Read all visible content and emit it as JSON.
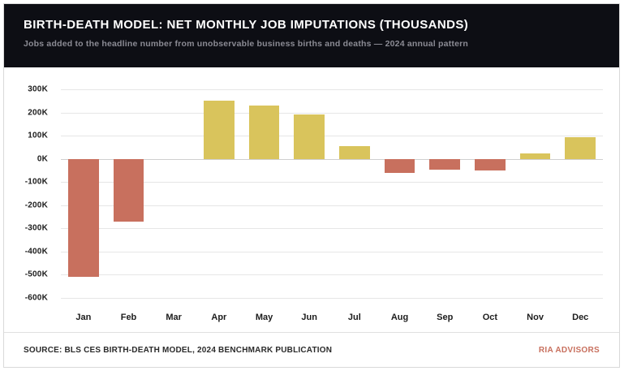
{
  "header": {
    "title": "BIRTH-DEATH MODEL: NET MONTHLY JOB IMPUTATIONS (THOUSANDS)",
    "subtitle": "Jobs added to the headline number from unobservable business births and deaths — 2024 annual pattern"
  },
  "chart_data": {
    "type": "bar",
    "categories": [
      "Jan",
      "Feb",
      "Mar",
      "Apr",
      "May",
      "Jun",
      "Jul",
      "Aug",
      "Sep",
      "Oct",
      "Nov",
      "Dec"
    ],
    "values": [
      -510,
      -270,
      0,
      250,
      230,
      190,
      55,
      -60,
      -45,
      -50,
      25,
      95
    ],
    "title": "BIRTH-DEATH MODEL: NET MONTHLY JOB IMPUTATIONS (THOUSANDS)",
    "xlabel": "",
    "ylabel": "",
    "ylim": [
      -600,
      300
    ],
    "ytick_step": 100,
    "ytick_suffix": "K",
    "grid": true,
    "legend": "none",
    "positive_color": "#d9c45c",
    "negative_color": "#c8705e"
  },
  "footer": {
    "source": "SOURCE: BLS CES BIRTH-DEATH MODEL, 2024 BENCHMARK PUBLICATION",
    "brand": "RIA ADVISORS",
    "brand_color": "#c8705e"
  }
}
